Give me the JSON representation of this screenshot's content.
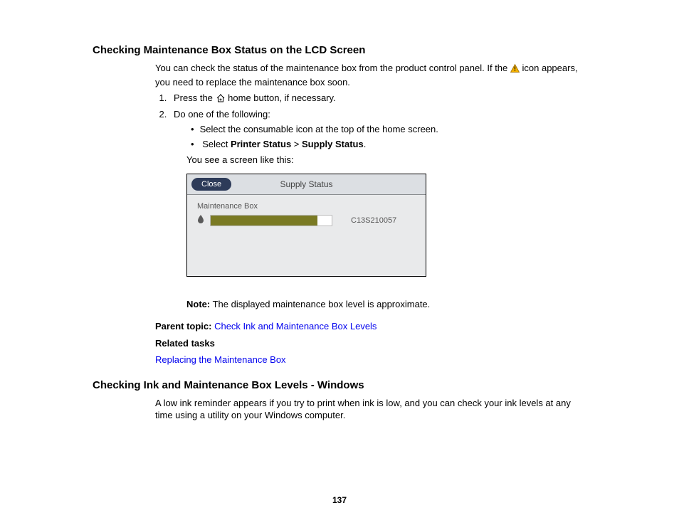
{
  "section1": {
    "heading": "Checking Maintenance Box Status on the LCD Screen",
    "intro_before_icon": "You can check the status of the maintenance box from the product control panel. If the ",
    "intro_after_icon": " icon appears, you need to replace the maintenance box soon.",
    "step1_before_icon": "Press the ",
    "step1_after_icon": " home button, if necessary.",
    "step2": "Do one of the following:",
    "bullet1": "Select the consumable icon at the top of the home screen.",
    "bullet2_prefix": "Select ",
    "bullet2_bold1": "Printer Status",
    "bullet2_sep": " > ",
    "bullet2_bold2": "Supply Status",
    "bullet2_suffix": ".",
    "after_bullets": "You see a screen like this:",
    "note_label": "Note:",
    "note_text": " The displayed maintenance box level is approximate.",
    "parent_label": "Parent topic: ",
    "parent_link": "Check Ink and Maintenance Box Levels",
    "related_label": "Related tasks",
    "related_link": "Replacing the Maintenance Box"
  },
  "screen": {
    "close": "Close",
    "title": "Supply Status",
    "mb_label": "Maintenance Box",
    "part_no": "C13S210057",
    "fill_pct": 88,
    "bar_fill_color": "#7a7a23",
    "bar_bg_color": "#ffffff",
    "panel_bg": "#e9eaeb",
    "header_bg": "#dcdfe3",
    "close_bg": "#2d3b59"
  },
  "section2": {
    "heading": "Checking Ink and Maintenance Box Levels - Windows",
    "body": "A low ink reminder appears if you try to print when ink is low, and you can check your ink levels at any time using a utility on your Windows computer."
  },
  "page_number": "137",
  "icons": {
    "warning_fill": "#f5b200",
    "warning_stroke": "#9a6a00",
    "home_stroke": "#000000"
  }
}
